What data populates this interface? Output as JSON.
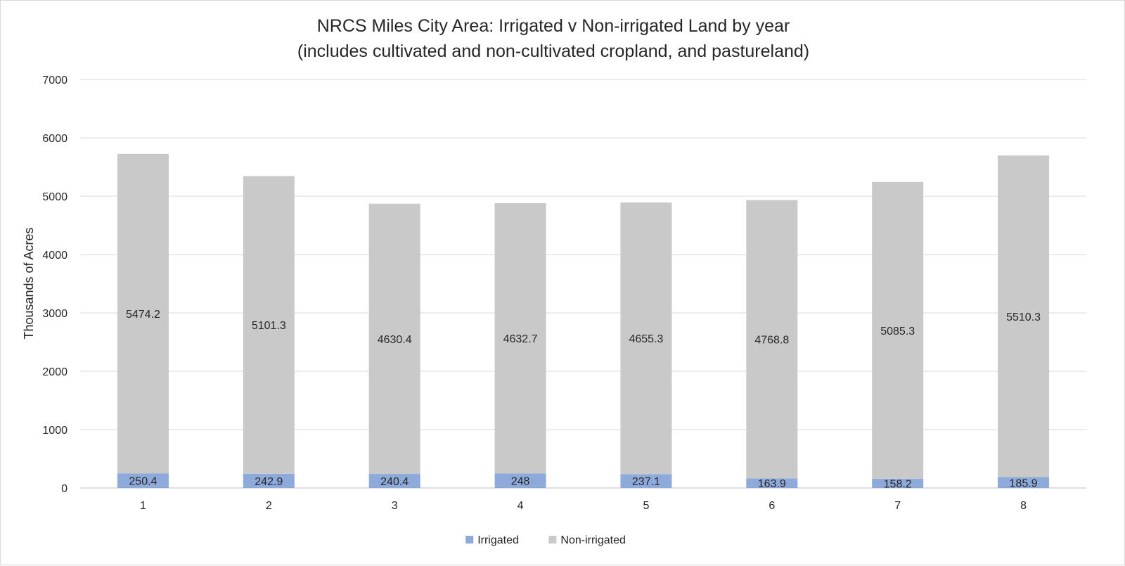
{
  "chart_data": {
    "type": "bar",
    "stacked": true,
    "title": "NRCS Miles City Area: Irrigated v Non-irrigated Land by year",
    "subtitle": "(includes cultivated and non-cultivated cropland, and pastureland)",
    "xlabel": "",
    "ylabel": "Thousands of Acres",
    "ylim": [
      0,
      7000
    ],
    "yticks": [
      0,
      1000,
      2000,
      3000,
      4000,
      5000,
      6000,
      7000
    ],
    "categories": [
      "1",
      "2",
      "3",
      "4",
      "5",
      "6",
      "7",
      "8"
    ],
    "grid": true,
    "legend": "bottom",
    "series": [
      {
        "name": "Irrigated",
        "color": "#8eaadb",
        "values": [
          250.4,
          242.9,
          240.4,
          248,
          237.1,
          163.9,
          158.2,
          185.9
        ],
        "labels": [
          "250.4",
          "242.9",
          "240.4",
          "248",
          "237.1",
          "163.9",
          "158.2",
          "185.9"
        ]
      },
      {
        "name": "Non-irrigated",
        "color": "#c9c9c9",
        "values": [
          5474.2,
          5101.3,
          4630.4,
          4632.7,
          4655.3,
          4768.8,
          5085.3,
          5510.3
        ],
        "labels": [
          "5474.2",
          "5101.3",
          "4630.4",
          "4632.7",
          "4655.3",
          "4768.8",
          "5085.3",
          "5510.3"
        ]
      }
    ]
  }
}
